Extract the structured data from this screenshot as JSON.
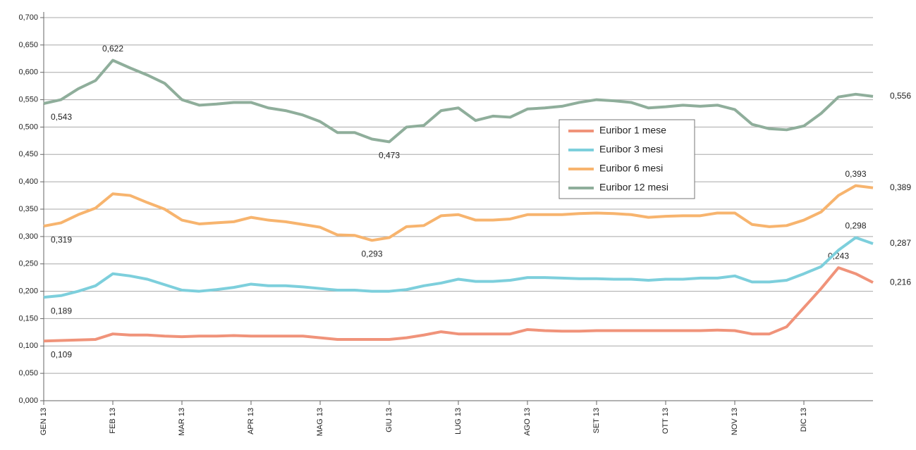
{
  "chart_data": {
    "type": "line",
    "categories": [
      "GEN 13",
      null,
      null,
      null,
      "FEB 13",
      null,
      null,
      null,
      "MAR 13",
      null,
      null,
      null,
      "APR 13",
      null,
      null,
      null,
      "MAG 13",
      null,
      null,
      null,
      "GIU 13",
      null,
      null,
      null,
      "LUG 13",
      null,
      null,
      null,
      "AGO 13",
      null,
      null,
      null,
      "SET 13",
      null,
      null,
      null,
      "OTT 13",
      null,
      null,
      null,
      "NOV 13",
      null,
      null,
      null,
      "DIC 13",
      null,
      null,
      null,
      null
    ],
    "series": [
      {
        "name": "Euribor 1 mese",
        "color": "#f0937a",
        "values": [
          0.109,
          0.11,
          0.111,
          0.112,
          0.122,
          0.12,
          0.12,
          0.118,
          0.117,
          0.118,
          0.118,
          0.119,
          0.118,
          0.118,
          0.118,
          0.118,
          0.115,
          0.112,
          0.112,
          0.112,
          0.112,
          0.115,
          0.12,
          0.126,
          0.122,
          0.122,
          0.122,
          0.122,
          0.13,
          0.128,
          0.127,
          0.127,
          0.128,
          0.128,
          0.128,
          0.128,
          0.128,
          0.128,
          0.128,
          0.129,
          0.128,
          0.122,
          0.122,
          0.135,
          0.17,
          0.205,
          0.243,
          0.232,
          0.216
        ],
        "value_labels": [
          "0,109",
          null,
          null,
          null,
          null,
          null,
          null,
          null,
          null,
          null,
          null,
          null,
          null,
          null,
          null,
          null,
          null,
          null,
          null,
          null,
          null,
          null,
          null,
          null,
          null,
          null,
          null,
          null,
          null,
          null,
          null,
          null,
          null,
          null,
          null,
          null,
          null,
          null,
          null,
          null,
          null,
          null,
          null,
          null,
          null,
          null,
          "0,243",
          null,
          "0,216"
        ]
      },
      {
        "name": "Euribor 3 mesi",
        "color": "#7dcfdc",
        "values": [
          0.189,
          0.192,
          0.2,
          0.21,
          0.232,
          0.228,
          0.222,
          0.212,
          0.202,
          0.2,
          0.203,
          0.207,
          0.213,
          0.21,
          0.21,
          0.208,
          0.205,
          0.202,
          0.202,
          0.2,
          0.2,
          0.203,
          0.21,
          0.215,
          0.222,
          0.218,
          0.218,
          0.22,
          0.225,
          0.225,
          0.224,
          0.223,
          0.223,
          0.222,
          0.222,
          0.22,
          0.222,
          0.222,
          0.224,
          0.224,
          0.228,
          0.217,
          0.217,
          0.22,
          0.232,
          0.245,
          0.275,
          0.298,
          0.287
        ],
        "value_labels": [
          "0,189",
          null,
          null,
          null,
          null,
          null,
          null,
          null,
          null,
          null,
          null,
          null,
          null,
          null,
          null,
          null,
          null,
          null,
          null,
          null,
          null,
          null,
          null,
          null,
          null,
          null,
          null,
          null,
          null,
          null,
          null,
          null,
          null,
          null,
          null,
          null,
          null,
          null,
          null,
          null,
          null,
          null,
          null,
          null,
          null,
          null,
          null,
          "0,298",
          "0,287"
        ]
      },
      {
        "name": "Euribor 6 mesi",
        "color": "#f7b46e",
        "values": [
          0.319,
          0.325,
          0.34,
          0.352,
          0.378,
          0.375,
          0.362,
          0.35,
          0.33,
          0.323,
          0.325,
          0.327,
          0.335,
          0.33,
          0.327,
          0.322,
          0.317,
          0.303,
          0.302,
          0.293,
          0.298,
          0.318,
          0.32,
          0.338,
          0.34,
          0.33,
          0.33,
          0.332,
          0.34,
          0.34,
          0.34,
          0.342,
          0.343,
          0.342,
          0.34,
          0.335,
          0.337,
          0.338,
          0.338,
          0.343,
          0.343,
          0.322,
          0.318,
          0.32,
          0.33,
          0.345,
          0.375,
          0.393,
          0.389
        ],
        "value_labels": [
          "0,319",
          null,
          null,
          null,
          null,
          null,
          null,
          null,
          null,
          null,
          null,
          null,
          null,
          null,
          null,
          null,
          null,
          null,
          null,
          "0,293",
          null,
          null,
          null,
          null,
          null,
          null,
          null,
          null,
          null,
          null,
          null,
          null,
          null,
          null,
          null,
          null,
          null,
          null,
          null,
          null,
          null,
          null,
          null,
          null,
          null,
          null,
          null,
          "0,393",
          "0,389"
        ]
      },
      {
        "name": "Euribor 12 mesi",
        "color": "#8fae9b",
        "values": [
          0.543,
          0.55,
          0.57,
          0.585,
          0.622,
          0.608,
          0.595,
          0.58,
          0.55,
          0.54,
          0.542,
          0.545,
          0.545,
          0.535,
          0.53,
          0.522,
          0.51,
          0.49,
          0.49,
          0.478,
          0.473,
          0.5,
          0.503,
          0.53,
          0.535,
          0.512,
          0.52,
          0.518,
          0.533,
          0.535,
          0.538,
          0.545,
          0.55,
          0.548,
          0.545,
          0.535,
          0.537,
          0.54,
          0.538,
          0.54,
          0.532,
          0.505,
          0.497,
          0.495,
          0.502,
          0.525,
          0.555,
          0.56,
          0.556
        ],
        "value_labels": [
          "0,543",
          null,
          null,
          null,
          "0,622",
          null,
          null,
          null,
          null,
          null,
          null,
          null,
          null,
          null,
          null,
          null,
          null,
          null,
          null,
          null,
          "0,473",
          null,
          null,
          null,
          null,
          null,
          null,
          null,
          null,
          null,
          null,
          null,
          null,
          null,
          null,
          null,
          null,
          null,
          null,
          null,
          null,
          null,
          null,
          null,
          null,
          null,
          null,
          null,
          "0,556"
        ]
      }
    ],
    "ylim": [
      0,
      0.7
    ],
    "yticks": [
      {
        "value": 0,
        "label": "0,000"
      },
      {
        "value": 0.05,
        "label": "0,050"
      },
      {
        "value": 0.1,
        "label": "0,100"
      },
      {
        "value": 0.15,
        "label": "0,150"
      },
      {
        "value": 0.2,
        "label": "0,200"
      },
      {
        "value": 0.25,
        "label": "0,250"
      },
      {
        "value": 0.3,
        "label": "0,300"
      },
      {
        "value": 0.35,
        "label": "0,350"
      },
      {
        "value": 0.4,
        "label": "0,400"
      },
      {
        "value": 0.45,
        "label": "0,450"
      },
      {
        "value": 0.5,
        "label": "0,500"
      },
      {
        "value": 0.55,
        "label": "0,550"
      },
      {
        "value": 0.6,
        "label": "0,600"
      },
      {
        "value": 0.65,
        "label": "0,650"
      },
      {
        "value": 0.7,
        "label": "0,700"
      }
    ],
    "grid": true
  }
}
